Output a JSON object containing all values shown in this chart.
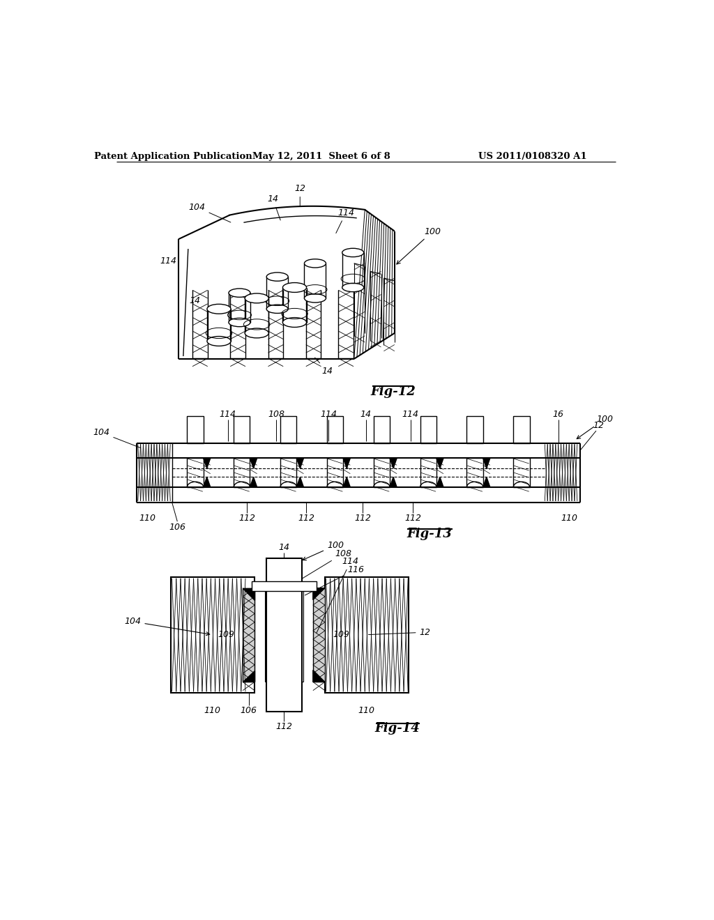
{
  "header_left": "Patent Application Publication",
  "header_mid": "May 12, 2011  Sheet 6 of 8",
  "header_right": "US 2011/0108320 A1",
  "bg_color": "#ffffff",
  "fig12_label": "Fig-12",
  "fig13_label": "Fig-13",
  "fig14_label": "Fig-14",
  "line_color": "#000000",
  "hatch_color": "#000000"
}
